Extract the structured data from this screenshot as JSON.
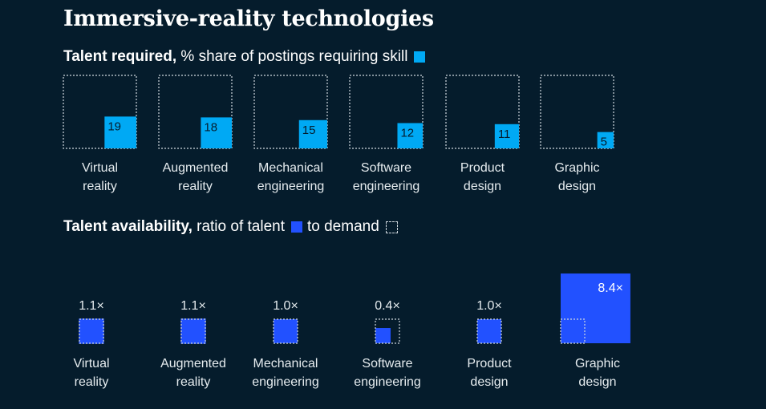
{
  "title": "Immersive-reality technologies",
  "colors": {
    "background": "#051c2c",
    "required_fill": "#00a9f4",
    "availability_fill": "#2251ff",
    "dashed_outline": "#d0d8de"
  },
  "chart_data": [
    {
      "type": "bar",
      "name": "talent-required",
      "heading_bold": "Talent required,",
      "heading_rest": " % share of postings requiring skill",
      "unit": "% share of postings",
      "categories": [
        [
          "Virtual",
          "reality"
        ],
        [
          "Augmented",
          "reality"
        ],
        [
          "Mechanical",
          "engineering"
        ],
        [
          "Software",
          "engineering"
        ],
        [
          "Product",
          "design"
        ],
        [
          "Graphic",
          "design"
        ]
      ],
      "values": [
        19,
        18,
        15,
        12,
        11,
        5
      ],
      "value_labels": [
        "19",
        "18",
        "15",
        "12",
        "11",
        "5"
      ],
      "reference_value": 100
    },
    {
      "type": "bar",
      "name": "talent-availability",
      "heading_bold": "Talent availability,",
      "heading_mid": " ratio of talent",
      "heading_end": "to demand",
      "unit": "ratio of talent to demand",
      "categories": [
        [
          "Virtual",
          "reality"
        ],
        [
          "Augmented",
          "reality"
        ],
        [
          "Mechanical",
          "engineering"
        ],
        [
          "Software",
          "engineering"
        ],
        [
          "Product",
          "design"
        ],
        [
          "Graphic",
          "design"
        ]
      ],
      "values": [
        1.1,
        1.1,
        1.0,
        0.4,
        1.0,
        8.4
      ],
      "value_labels": [
        "1.1×",
        "1.1×",
        "1.0×",
        "0.4×",
        "1.0×",
        "8.4×"
      ],
      "demand_reference": 1.0
    }
  ]
}
